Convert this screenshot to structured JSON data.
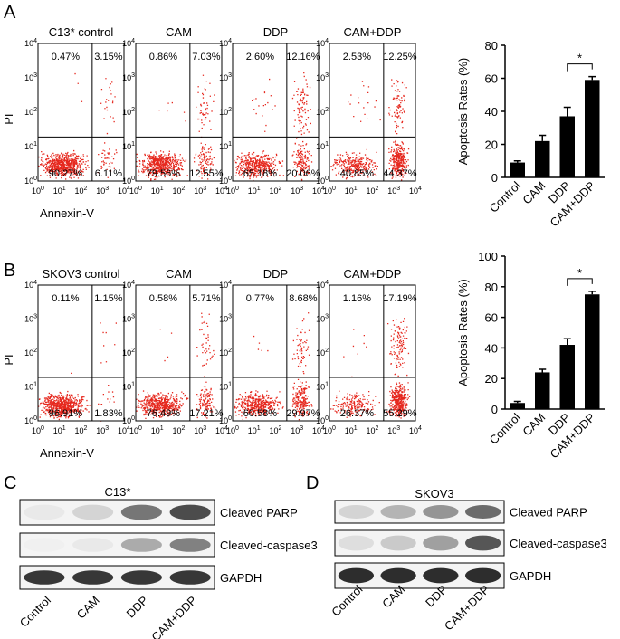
{
  "panel_labels": [
    "A",
    "B",
    "C",
    "D"
  ],
  "flow": [
    {
      "y_label": "PI",
      "x_label": "Annexin-V",
      "tick_base": "10",
      "tick_exponents": [
        "0",
        "1",
        "2",
        "3",
        "4"
      ],
      "plots": [
        {
          "title": "C13* control",
          "quadrants": [
            "0.47%",
            "3.15%",
            "90.27%",
            "6.11%"
          ]
        },
        {
          "title": "CAM",
          "quadrants": [
            "0.86%",
            "7.03%",
            "79.56%",
            "12.55%"
          ]
        },
        {
          "title": "DDP",
          "quadrants": [
            "2.60%",
            "12.16%",
            "65.18%",
            "20.06%"
          ]
        },
        {
          "title": "CAM+DDP",
          "quadrants": [
            "2.53%",
            "12.25%",
            "40.85%",
            "44.37%"
          ]
        }
      ]
    },
    {
      "y_label": "PI",
      "x_label": "Annexin-V",
      "tick_base": "10",
      "tick_exponents": [
        "0",
        "1",
        "2",
        "3",
        "4"
      ],
      "plots": [
        {
          "title": "SKOV3 control",
          "quadrants": [
            "0.11%",
            "1.15%",
            "96.91%",
            "1.83%"
          ]
        },
        {
          "title": "CAM",
          "quadrants": [
            "0.58%",
            "5.71%",
            "76.49%",
            "17.21%"
          ]
        },
        {
          "title": "DDP",
          "quadrants": [
            "0.77%",
            "8.68%",
            "60.58%",
            "29.97%"
          ]
        },
        {
          "title": "CAM+DDP",
          "quadrants": [
            "1.16%",
            "17.19%",
            "26.37%",
            "55.29%"
          ]
        }
      ]
    }
  ],
  "chart_data": [
    {
      "type": "bar",
      "ylabel": "Apoptosis Rates (%)",
      "categories": [
        "Control",
        "CAM",
        "DDP",
        "CAM+DDP"
      ],
      "values": [
        9,
        22,
        37,
        59
      ],
      "errors": [
        1,
        3.5,
        5.5,
        2
      ],
      "color": "#000000",
      "ylim": [
        0,
        80
      ],
      "yticks": [
        0,
        20,
        40,
        60,
        80
      ],
      "annotation": "*"
    },
    {
      "type": "bar",
      "ylabel": "Apoptosis Rates (%)",
      "categories": [
        "Control",
        "CAM",
        "DDP",
        "CAM+DDP"
      ],
      "values": [
        4,
        24,
        42,
        75
      ],
      "errors": [
        1,
        2,
        4,
        2
      ],
      "color": "#000000",
      "ylim": [
        0,
        100
      ],
      "yticks": [
        0,
        20,
        40,
        60,
        80,
        100
      ],
      "annotation": "*"
    }
  ],
  "blots": [
    {
      "cell_line": "C13*",
      "rows": [
        "Cleaved PARP",
        "Cleaved-caspase3",
        "GAPDH"
      ],
      "lanes": [
        "Control",
        "CAM",
        "DDP",
        "CAM+DDP"
      ]
    },
    {
      "cell_line": "SKOV3",
      "rows": [
        "Cleaved PARP",
        "Cleaved-caspase3",
        "GAPDH"
      ],
      "lanes": [
        "Control",
        "CAM",
        "DDP",
        "CAM+DDP"
      ]
    }
  ]
}
